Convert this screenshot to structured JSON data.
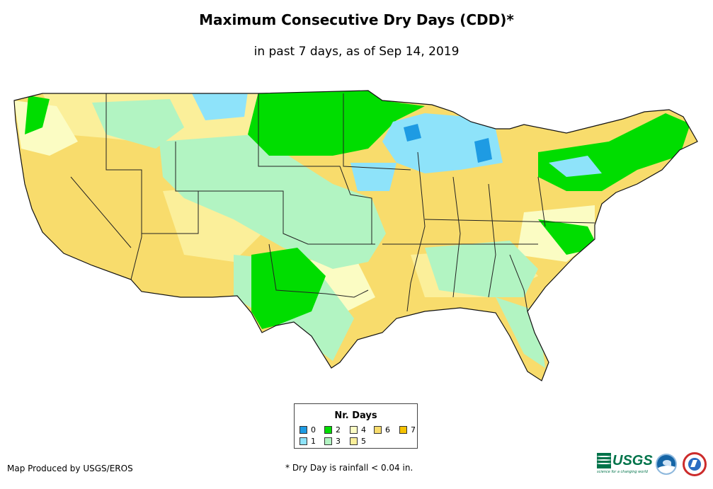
{
  "map": {
    "title": "Maximum Consecutive Dry Days (CDD)*",
    "subtitle": "in past 7 days, as of Sep 14, 2019",
    "region": "Contiguous United States"
  },
  "legend": {
    "title": "Nr. Days",
    "items": [
      {
        "label": "0",
        "color": "#1e9be3"
      },
      {
        "label": "1",
        "color": "#8ee3fa"
      },
      {
        "label": "2",
        "color": "#00dd00"
      },
      {
        "label": "3",
        "color": "#b2f4c2"
      },
      {
        "label": "4",
        "color": "#fbfcc3"
      },
      {
        "label": "5",
        "color": "#fbef9a"
      },
      {
        "label": "6",
        "color": "#f8dc6c"
      },
      {
        "label": "7",
        "color": "#f5c200"
      }
    ]
  },
  "footer": {
    "credit": "Map Produced by USGS/EROS",
    "footnote": "* Dry Day is rainfall < 0.04 in.",
    "usgs_logo": "USGS",
    "usgs_tagline": "science for a changing world",
    "logos": [
      "usgs-logo",
      "noaa-logo",
      "nws-logo"
    ]
  }
}
